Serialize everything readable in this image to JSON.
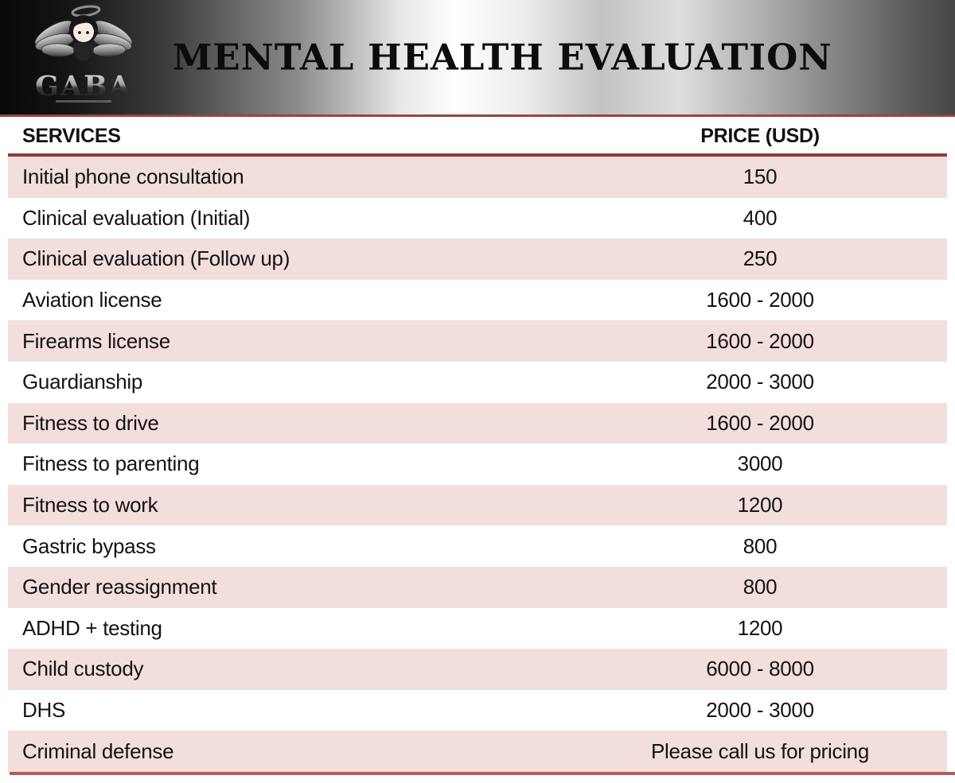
{
  "header": {
    "title": "MENTAL HEALTH EVALUATION",
    "logo": {
      "brand": "GABA"
    }
  },
  "table": {
    "columns": {
      "services": "SERVICES",
      "price": "PRICE (USD)"
    },
    "rows": [
      {
        "service": "Initial phone consultation",
        "price": "150"
      },
      {
        "service": "Clinical evaluation (Initial)",
        "price": "400"
      },
      {
        "service": "Clinical evaluation (Follow up)",
        "price": "250"
      },
      {
        "service": "Aviation license",
        "price": "1600 - 2000"
      },
      {
        "service": "Firearms license",
        "price": "1600 - 2000"
      },
      {
        "service": "Guardianship",
        "price": "2000 - 3000"
      },
      {
        "service": "Fitness to drive",
        "price": "1600 - 2000"
      },
      {
        "service": "Fitness to parenting",
        "price": "3000"
      },
      {
        "service": "Fitness to work",
        "price": "1200"
      },
      {
        "service": "Gastric bypass",
        "price": "800"
      },
      {
        "service": "Gender reassignment",
        "price": "800"
      },
      {
        "service": "ADHD + testing",
        "price": "1200"
      },
      {
        "service": "Child custody",
        "price": "6000 - 8000"
      },
      {
        "service": "DHS",
        "price": "2000 - 3000"
      },
      {
        "service": "Criminal defense",
        "price": "Please call us for pricing"
      }
    ]
  },
  "colors": {
    "row_alt": "#f2dedb",
    "accent_line": "#9a4343",
    "header_rule": "#8e3c3c",
    "bottom_line": "#b45c5c",
    "text": "#141414"
  }
}
